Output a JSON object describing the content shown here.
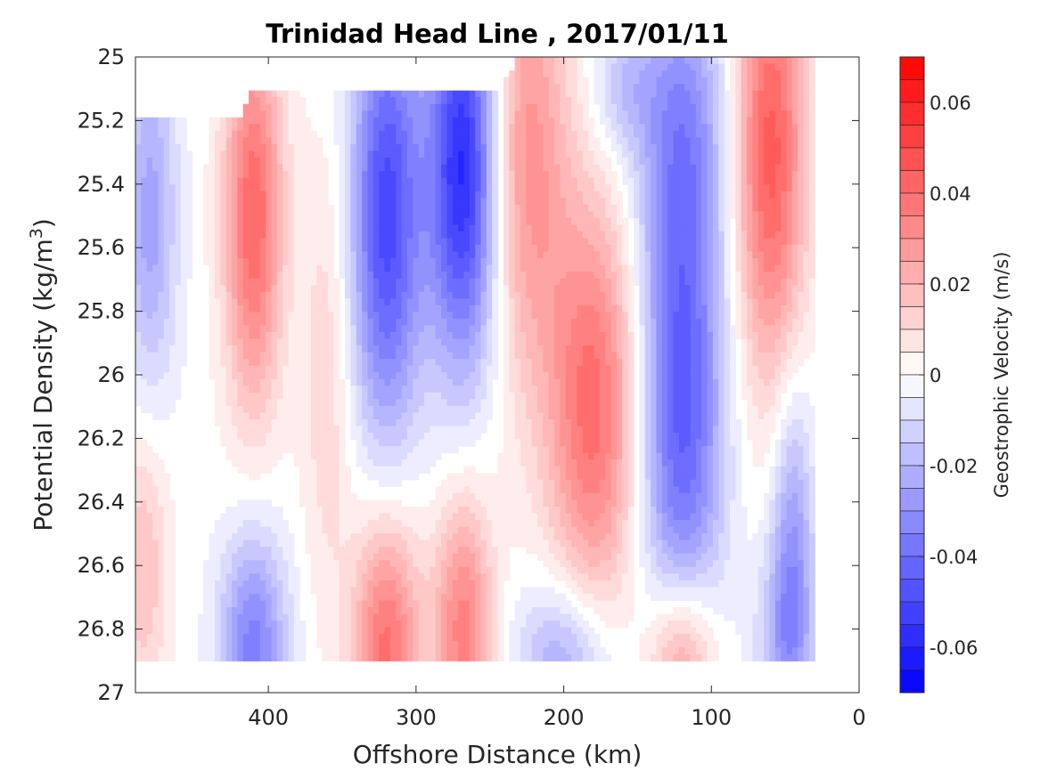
{
  "chart_data": {
    "type": "heatmap",
    "title": "Trinidad Head Line , 2017/01/11",
    "xlabel": "Offshore Distance (km)",
    "ylabel_main": "Potential Density (kg/m",
    "ylabel_sup": "3",
    "ylabel_end": ")",
    "colorbar_label": "Geostrophic Velocity (m/s)",
    "xlim": [
      490,
      0
    ],
    "x_reversed": true,
    "ylim": [
      25,
      27
    ],
    "y_reversed": true,
    "x_ticks": [
      400,
      300,
      200,
      100,
      0
    ],
    "y_ticks": [
      25,
      25.2,
      25.4,
      25.6,
      25.8,
      26,
      26.2,
      26.4,
      26.6,
      26.8,
      27
    ],
    "colorbar_range": [
      -0.07,
      0.07
    ],
    "colorbar_ticks": [
      "0.06",
      "0.04",
      "0.02",
      "0",
      "-0.02",
      "-0.04",
      "-0.06"
    ],
    "colorbar_tick_values": [
      0.06,
      0.04,
      0.02,
      0,
      -0.02,
      -0.04,
      -0.06
    ],
    "contour_step": 0.005,
    "colormap": [
      "#0000ff",
      "#ffffff",
      "#ff0000"
    ],
    "top_boundary": [
      [
        490,
        25.2
      ],
      [
        420,
        25.2
      ],
      [
        410,
        25.1
      ],
      [
        245,
        25.1
      ],
      [
        230,
        25.0
      ],
      [
        0,
        25.0
      ]
    ],
    "data_x_range": [
      30,
      490
    ],
    "data_y_max": 26.9,
    "features": [
      {
        "x": 410,
        "y": 25.5,
        "v": 0.042,
        "sx": 14,
        "sy": 0.42
      },
      {
        "x": 320,
        "y": 25.5,
        "v": -0.05,
        "sx": 17,
        "sy": 0.5
      },
      {
        "x": 268,
        "y": 25.35,
        "v": -0.06,
        "sx": 17,
        "sy": 0.45
      },
      {
        "x": 225,
        "y": 25.3,
        "v": 0.03,
        "sx": 20,
        "sy": 0.5
      },
      {
        "x": 180,
        "y": 26.1,
        "v": 0.04,
        "sx": 22,
        "sy": 0.45
      },
      {
        "x": 120,
        "y": 26.1,
        "v": -0.045,
        "sx": 20,
        "sy": 0.55
      },
      {
        "x": 120,
        "y": 25.2,
        "v": -0.025,
        "sx": 22,
        "sy": 0.35
      },
      {
        "x": 160,
        "y": 25.1,
        "v": -0.015,
        "sx": 15,
        "sy": 0.15
      },
      {
        "x": 60,
        "y": 25.3,
        "v": 0.045,
        "sx": 17,
        "sy": 0.5
      },
      {
        "x": 45,
        "y": 26.5,
        "v": -0.025,
        "sx": 10,
        "sy": 0.35
      },
      {
        "x": 480,
        "y": 25.5,
        "v": -0.025,
        "sx": 13,
        "sy": 0.4
      },
      {
        "x": 485,
        "y": 26.6,
        "v": 0.018,
        "sx": 12,
        "sy": 0.3
      },
      {
        "x": 360,
        "y": 26.0,
        "v": 0.012,
        "sx": 12,
        "sy": 0.5
      },
      {
        "x": 410,
        "y": 26.85,
        "v": -0.035,
        "sx": 16,
        "sy": 0.25
      },
      {
        "x": 320,
        "y": 26.85,
        "v": 0.04,
        "sx": 16,
        "sy": 0.3
      },
      {
        "x": 268,
        "y": 26.8,
        "v": 0.035,
        "sx": 14,
        "sy": 0.3
      },
      {
        "x": 200,
        "y": 26.9,
        "v": -0.025,
        "sx": 22,
        "sy": 0.18
      },
      {
        "x": 120,
        "y": 26.9,
        "v": 0.035,
        "sx": 16,
        "sy": 0.2
      },
      {
        "x": 50,
        "y": 26.85,
        "v": -0.02,
        "sx": 14,
        "sy": 0.22
      }
    ]
  }
}
